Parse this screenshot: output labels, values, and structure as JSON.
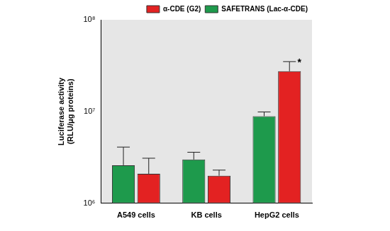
{
  "chart_data": {
    "type": "bar",
    "y_label": [
      "Luciferase activity",
      "(RLU/μg proteins)"
    ],
    "categories": [
      "A549 cells",
      "KB cells",
      "HepG2 cells"
    ],
    "series": [
      {
        "name": "SAFETRANS (Lac-α-CDE)",
        "color": "#1e9a4c",
        "values": [
          2600000,
          3000000,
          8900000
        ],
        "errors": [
          1500000,
          600000,
          1000000
        ]
      },
      {
        "name": "α-CDE (G2)",
        "color": "#e32222",
        "values": [
          2100000,
          2000000,
          27500000
        ],
        "errors": [
          1000000,
          300000,
          7500000
        ]
      }
    ],
    "log": "y",
    "ylim": [
      1000000,
      100000000
    ],
    "yticks": [
      {
        "value": 1000000,
        "label": "10⁶"
      },
      {
        "value": 10000000,
        "label": "10⁷"
      },
      {
        "value": 100000000,
        "label": "10⁸"
      }
    ],
    "grid": false,
    "legend": "top-right",
    "annotations": [
      {
        "text": "*",
        "category": "HepG2 cells",
        "series": "α-CDE (G2)"
      }
    ]
  }
}
